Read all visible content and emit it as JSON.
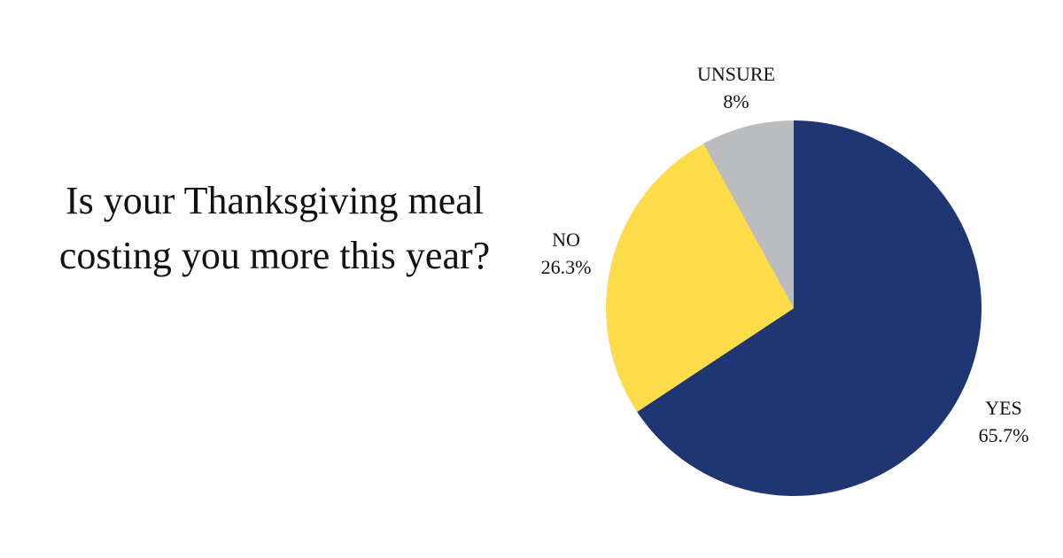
{
  "chart_data": {
    "type": "pie",
    "title": "Is your Thanksgiving meal costing you more this year?",
    "slices": [
      {
        "label": "YES",
        "value": 65.7,
        "display": "65.7%",
        "color": "#1f3673"
      },
      {
        "label": "NO",
        "value": 26.3,
        "display": "26.3%",
        "color": "#fedb49"
      },
      {
        "label": "UNSURE",
        "value": 8,
        "display": "8%",
        "color": "#bbbcc0"
      }
    ],
    "start_angle_deg": 0,
    "direction": "clockwise",
    "legend": "none"
  }
}
